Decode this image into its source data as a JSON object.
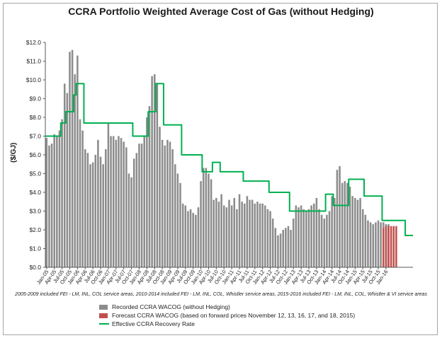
{
  "colors": {
    "recorded": "#8c8c8c",
    "forecast": "#c0504d",
    "recovery": "#00b050",
    "grid": "#d9d9d9",
    "axis": "#595959"
  },
  "chart_data": {
    "type": "bar",
    "title": "CCRA Portfolio Weighted Average Cost of Gas (without Hedging)",
    "ylabel": "($/GJ)",
    "xlabel": "",
    "ylim": [
      0,
      12
    ],
    "yticks": [
      0,
      1,
      2,
      3,
      4,
      5,
      6,
      7,
      8,
      9,
      10,
      11,
      12
    ],
    "ytick_labels": [
      "$0.0",
      "$1.0",
      "$2.0",
      "$3.0",
      "$4.0",
      "$5.0",
      "$6.0",
      "$7.0",
      "$8.0",
      "$9.0",
      "$10.0",
      "$11.0",
      "$12.0"
    ],
    "grid": false,
    "legend_position": "bottom",
    "x_start": "Jan-05",
    "x_tick_labels": [
      "Jan-05",
      "Apr-05",
      "Jul-05",
      "Oct-05",
      "Jan-06",
      "Apr-06",
      "Jul-06",
      "Oct-06",
      "Jan-07",
      "Apr-07",
      "Jul-07",
      "Oct-07",
      "Jan-08",
      "Apr-08",
      "Jul-08",
      "Oct-08",
      "Jan-09",
      "Apr-09",
      "Jul-09",
      "Oct-09",
      "Jan-10",
      "Apr-10",
      "Jul-10",
      "Oct-10",
      "Jan-11",
      "Apr-11",
      "Jul-11",
      "Oct-11",
      "Jan-12",
      "Apr-12",
      "Jul-12",
      "Oct-12",
      "Jan-13",
      "Apr-13",
      "Jul-13",
      "Oct-13",
      "Jan-14",
      "Apr-14",
      "Jul-14",
      "Oct-14",
      "Jan-15",
      "Apr-15",
      "Jul-15",
      "Oct-15",
      "Jan-16"
    ],
    "footnote": "2005-2009 included FEI - LM, INL, COL service areas, 2010-2014 included  FEI - LM, INL, COL, Whistler service areas, 2015-2016 included FEI - LM, INL, COL, Whistler & VI service areas",
    "series": [
      {
        "name": "Recorded CCRA WACOG (without Hedging)",
        "type": "bar",
        "values": [
          6.9,
          6.5,
          6.6,
          7.1,
          7.0,
          7.3,
          7.9,
          9.8,
          9.3,
          11.5,
          11.6,
          10.3,
          11.3,
          7.9,
          7.3,
          6.3,
          6.1,
          5.5,
          5.6,
          6.0,
          6.8,
          5.9,
          5.5,
          6.3,
          7.7,
          7.0,
          7.0,
          6.8,
          7.0,
          6.9,
          6.7,
          6.4,
          5.0,
          4.8,
          5.8,
          6.1,
          6.6,
          6.6,
          7.0,
          8.0,
          8.6,
          10.2,
          10.3,
          9.8,
          7.5,
          6.8,
          6.5,
          6.8,
          6.7,
          6.3,
          5.5,
          5.0,
          4.5,
          3.4,
          3.3,
          3.0,
          3.1,
          2.9,
          2.8,
          3.2,
          4.6,
          5.3,
          5.3,
          5.0,
          4.7,
          3.6,
          3.7,
          3.5,
          3.9,
          3.3,
          3.2,
          3.6,
          3.3,
          3.7,
          3.1,
          3.9,
          3.5,
          3.4,
          3.8,
          3.6,
          3.6,
          3.4,
          3.5,
          3.4,
          3.4,
          3.3,
          3.1,
          3.0,
          2.6,
          2.1,
          1.7,
          1.8,
          2.0,
          2.1,
          2.2,
          2.0,
          2.6,
          3.3,
          3.2,
          3.3,
          3.1,
          3.0,
          3.1,
          3.3,
          3.4,
          3.7,
          3.1,
          2.8,
          2.6,
          2.8,
          3.0,
          3.8,
          3.7,
          5.2,
          5.4,
          4.5,
          4.6,
          4.5,
          4.3,
          3.8,
          3.7,
          3.6,
          3.7,
          3.1,
          2.8,
          2.5,
          2.4,
          2.3,
          2.4,
          2.5,
          2.4,
          2.4,
          2.3,
          2.3
        ]
      },
      {
        "name": "Forecast CCRA WACOG (based on forward prices November 12, 13, 16, 17, and 18, 2015)",
        "type": "bar",
        "start_index": 131,
        "values": [
          2.1,
          2.2,
          2.2,
          2.2,
          2.2,
          2.2
        ]
      },
      {
        "name": "Effective CCRA Recovery Rate",
        "type": "line",
        "values": [
          7.0,
          7.0,
          7.0,
          7.0,
          7.0,
          7.0,
          7.7,
          7.7,
          8.3,
          8.3,
          8.3,
          9.2,
          9.8,
          9.8,
          9.8,
          7.7,
          7.7,
          7.7,
          7.7,
          7.7,
          7.7,
          7.7,
          7.7,
          7.7,
          7.7,
          7.7,
          7.7,
          7.7,
          7.7,
          7.7,
          7.7,
          7.7,
          7.7,
          7.7,
          7.0,
          7.0,
          7.0,
          7.0,
          7.0,
          7.0,
          8.3,
          8.3,
          8.3,
          9.8,
          9.8,
          9.8,
          7.6,
          7.6,
          7.6,
          7.6,
          7.6,
          7.6,
          7.6,
          6.0,
          6.0,
          6.0,
          6.0,
          6.0,
          6.0,
          6.0,
          6.0,
          5.1,
          5.1,
          5.1,
          5.1,
          5.6,
          5.6,
          5.6,
          5.1,
          5.1,
          5.1,
          5.1,
          5.1,
          5.1,
          5.1,
          5.1,
          5.1,
          4.6,
          4.6,
          4.6,
          4.6,
          4.6,
          4.6,
          4.6,
          4.6,
          4.6,
          4.6,
          4.0,
          4.0,
          4.0,
          4.0,
          4.0,
          4.0,
          4.0,
          4.0,
          3.0,
          3.0,
          3.0,
          3.0,
          3.0,
          3.0,
          3.0,
          3.0,
          3.0,
          3.0,
          3.0,
          3.0,
          3.0,
          3.0,
          3.9,
          3.9,
          3.9,
          3.3,
          3.3,
          3.3,
          3.3,
          3.3,
          3.3,
          4.7,
          4.7,
          4.7,
          4.7,
          4.7,
          4.7,
          3.8,
          3.8,
          3.8,
          3.8,
          3.8,
          3.8,
          3.8,
          2.5,
          2.5,
          2.5,
          2.5,
          2.5,
          2.5,
          2.5,
          2.5,
          2.5,
          1.7,
          1.7,
          1.7
        ]
      }
    ]
  }
}
